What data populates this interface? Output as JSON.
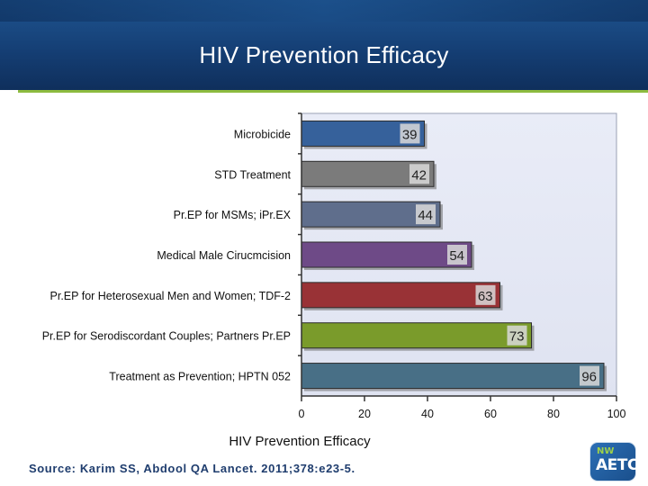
{
  "header": {
    "title": "HIV Prevention Efficacy"
  },
  "chart_data": {
    "type": "bar",
    "orientation": "horizontal",
    "title": "HIV Prevention Efficacy",
    "xlabel": "HIV Prevention Efficacy",
    "ylabel": "",
    "xlim": [
      0,
      100
    ],
    "xticks": [
      0,
      20,
      40,
      60,
      80,
      100
    ],
    "grid": false,
    "categories": [
      "Microbicide",
      "STD Treatment",
      "Pr.EP for MSMs; iPr.EX",
      "Medical Male Cirucmcision",
      "Pr.EP for Heterosexual Men and Women; TDF-2",
      "Pr.EP for Serodiscordant Couples; Partners Pr.EP",
      "Treatment as Prevention; HPTN 052"
    ],
    "values": [
      39,
      42,
      44,
      54,
      63,
      73,
      96
    ],
    "colors": [
      "#36619b",
      "#7b7b7b",
      "#5f6e8c",
      "#6e4a87",
      "#993236",
      "#7a9b2b",
      "#486f86"
    ]
  },
  "footer": {
    "source": "Source: Karim SS, Abdool QA Lancet. 2011;378:e23-5."
  },
  "logo": {
    "top_text": "NW",
    "main_text": "AETC"
  }
}
